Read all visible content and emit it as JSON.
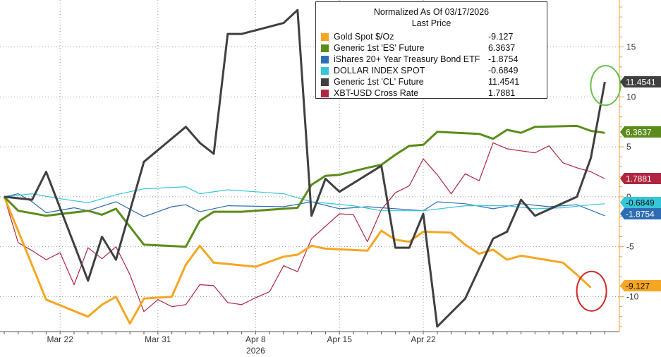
{
  "chart_data": {
    "type": "line",
    "title": "Normalized As Of 03/17/2026",
    "subtitle": "Last Price",
    "x_labels": [
      {
        "label": "Mar 22",
        "index": 4
      },
      {
        "label": "Mar 31",
        "index": 11
      },
      {
        "label": "Apr 8",
        "index": 18
      },
      {
        "label": "Apr 15",
        "index": 24
      },
      {
        "label": "Apr 22",
        "index": 30
      }
    ],
    "x_sublabel": "2026",
    "y_ticks": [
      15,
      10,
      5,
      0,
      -5,
      -10
    ],
    "ylim": [
      -13.5,
      19.7
    ],
    "series": [
      {
        "name": "Gold Spot $/Oz",
        "last": "-9.127",
        "color": "#f5a623",
        "points": [
          [
            0,
            0
          ],
          [
            3,
            -10.3
          ],
          [
            6,
            -12
          ],
          [
            7,
            -10.8
          ],
          [
            8,
            -10
          ],
          [
            9,
            -12.7
          ],
          [
            10,
            -10.2
          ],
          [
            12,
            -10
          ],
          [
            13,
            -6.8
          ],
          [
            14,
            -4.9
          ],
          [
            15,
            -6.6
          ],
          [
            18,
            -7
          ],
          [
            20,
            -6
          ],
          [
            21,
            -5.8
          ],
          [
            22,
            -4.9
          ],
          [
            23,
            -5.2
          ],
          [
            26,
            -5.4
          ],
          [
            27,
            -3.4
          ],
          [
            28,
            -4.3
          ],
          [
            29,
            -4.5
          ],
          [
            30,
            -3.5
          ],
          [
            32,
            -3.6
          ],
          [
            33,
            -4.8
          ],
          [
            34,
            -5.7
          ],
          [
            35,
            -5.3
          ],
          [
            36,
            -6.3
          ],
          [
            37,
            -5.9
          ],
          [
            40,
            -6.6
          ],
          [
            41,
            -7.8
          ],
          [
            42,
            -9.1
          ]
        ]
      },
      {
        "name": "Generic 1st 'ES' Future",
        "last": "6.3637",
        "color": "#5b8c1a",
        "points": [
          [
            0,
            0
          ],
          [
            1,
            -1.4
          ],
          [
            3,
            -1.9
          ],
          [
            6,
            -1.4
          ],
          [
            7,
            -1.8
          ],
          [
            8,
            -1.2
          ],
          [
            10,
            -4.8
          ],
          [
            13,
            -5
          ],
          [
            14,
            -2.4
          ],
          [
            15,
            -1.5
          ],
          [
            17,
            -1.5
          ],
          [
            21,
            -1.1
          ],
          [
            22,
            1.2
          ],
          [
            23,
            2.1
          ],
          [
            24,
            2.2
          ],
          [
            26,
            2.9
          ],
          [
            27,
            3.2
          ],
          [
            28,
            4.2
          ],
          [
            29,
            5.1
          ],
          [
            30,
            5.2
          ],
          [
            31,
            6.5
          ],
          [
            34,
            6.3
          ],
          [
            35,
            5.8
          ],
          [
            36,
            6.7
          ],
          [
            37,
            6.4
          ],
          [
            38,
            7
          ],
          [
            41,
            7.1
          ],
          [
            42,
            6.6
          ],
          [
            43,
            6.4
          ]
        ]
      },
      {
        "name": "iShares 20+ Year Treasury Bond ETF",
        "last": "-1.8754",
        "color": "#2e6db3",
        "points": [
          [
            0,
            0
          ],
          [
            1,
            0.3
          ],
          [
            2,
            -0.5
          ],
          [
            3,
            -1.6
          ],
          [
            5,
            -1.1
          ],
          [
            6,
            -1.4
          ],
          [
            8,
            -0.5
          ],
          [
            10,
            -2
          ],
          [
            12,
            -1
          ],
          [
            13,
            -0.8
          ],
          [
            14,
            -1.5
          ],
          [
            16,
            -0.9
          ],
          [
            20,
            -1
          ],
          [
            22,
            -0.5
          ],
          [
            24,
            -1.2
          ],
          [
            26,
            -1
          ],
          [
            28,
            -1.2
          ],
          [
            30,
            -1.4
          ],
          [
            31,
            -0.5
          ],
          [
            33,
            -0.7
          ],
          [
            35,
            -1.2
          ],
          [
            37,
            -0.7
          ],
          [
            39,
            -1
          ],
          [
            41,
            -0.8
          ],
          [
            43,
            -1.9
          ]
        ]
      },
      {
        "name": "DOLLAR INDEX SPOT",
        "last": "-0.6849",
        "color": "#36c6d9",
        "points": [
          [
            0,
            0
          ],
          [
            2,
            0.3
          ],
          [
            4,
            -0.2
          ],
          [
            6,
            -0.6
          ],
          [
            8,
            0.2
          ],
          [
            10,
            0.8
          ],
          [
            13,
            1
          ],
          [
            14,
            0.3
          ],
          [
            16,
            0.7
          ],
          [
            18,
            0.5
          ],
          [
            20,
            0.3
          ],
          [
            22,
            -0.5
          ],
          [
            25,
            -0.9
          ],
          [
            27,
            -1.4
          ],
          [
            30,
            -1.4
          ],
          [
            33,
            -0.9
          ],
          [
            36,
            -0.9
          ],
          [
            38,
            -1.2
          ],
          [
            40,
            -1.1
          ],
          [
            42,
            -0.8
          ],
          [
            43,
            -0.7
          ]
        ]
      },
      {
        "name": "Generic 1st 'CL' Future",
        "last": "11.4541",
        "color": "#404040",
        "points": [
          [
            0,
            0
          ],
          [
            2,
            -0.3
          ],
          [
            3,
            2.5
          ],
          [
            6,
            -8.4
          ],
          [
            7,
            -4
          ],
          [
            8,
            -6.3
          ],
          [
            10,
            3.5
          ],
          [
            13,
            7
          ],
          [
            14,
            5.4
          ],
          [
            15,
            4.3
          ],
          [
            16,
            16.3
          ],
          [
            17,
            16.3
          ],
          [
            20,
            17.4
          ],
          [
            21,
            18.7
          ],
          [
            22,
            -1.9
          ],
          [
            23,
            1.8
          ],
          [
            24,
            0.5
          ],
          [
            27,
            3.1
          ],
          [
            28,
            -5.1
          ],
          [
            29,
            -5.1
          ],
          [
            30,
            -1.7
          ],
          [
            31,
            -13
          ],
          [
            33,
            -10.2
          ],
          [
            34,
            -7.2
          ],
          [
            35,
            -4.2
          ],
          [
            36,
            -3.5
          ],
          [
            37,
            -0.3
          ],
          [
            38,
            -1.9
          ],
          [
            41,
            0
          ],
          [
            42,
            3.9
          ],
          [
            43,
            11.5
          ]
        ]
      },
      {
        "name": "XBT-USD Cross Rate",
        "last": "1.7881",
        "color": "#b0253f",
        "points": [
          [
            0,
            0
          ],
          [
            1,
            -4.6
          ],
          [
            2,
            -5.4
          ],
          [
            3,
            -6.3
          ],
          [
            4,
            -5.6
          ],
          [
            5,
            -8.8
          ],
          [
            6,
            -5.1
          ],
          [
            7,
            -6.2
          ],
          [
            8,
            -5
          ],
          [
            9,
            -7.8
          ],
          [
            10,
            -11.5
          ],
          [
            11,
            -10.3
          ],
          [
            12,
            -11
          ],
          [
            13,
            -10.8
          ],
          [
            14,
            -8.8
          ],
          [
            15,
            -8.9
          ],
          [
            16,
            -10.6
          ],
          [
            17,
            -10.8
          ],
          [
            18,
            -10.1
          ],
          [
            19,
            -9.5
          ],
          [
            20,
            -6.9
          ],
          [
            21,
            -7.5
          ],
          [
            22,
            -4.2
          ],
          [
            24,
            -1.7
          ],
          [
            25,
            -1.8
          ],
          [
            26,
            -4.5
          ],
          [
            27,
            -1.3
          ],
          [
            28,
            0.4
          ],
          [
            29,
            1.1
          ],
          [
            30,
            3.8
          ],
          [
            31,
            2.2
          ],
          [
            32,
            0.3
          ],
          [
            33,
            2.3
          ],
          [
            34,
            1.6
          ],
          [
            35,
            5.4
          ],
          [
            36,
            4.8
          ],
          [
            37,
            4.6
          ],
          [
            38,
            4.4
          ],
          [
            39,
            5.1
          ],
          [
            40,
            3.4
          ],
          [
            41,
            2.9
          ],
          [
            42,
            2.5
          ],
          [
            43,
            1.8
          ]
        ]
      }
    ],
    "highlights": [
      {
        "series": "Generic 1st 'CL' Future",
        "color": "#6cc14e"
      },
      {
        "series": "Gold Spot $/Oz",
        "color": "#d42a2a"
      }
    ]
  }
}
